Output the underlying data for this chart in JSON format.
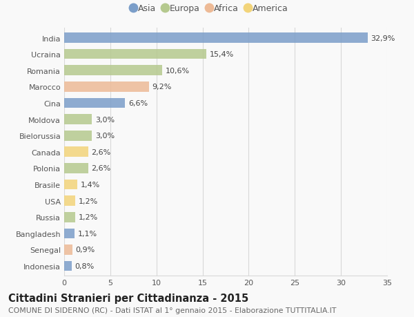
{
  "countries": [
    "India",
    "Ucraina",
    "Romania",
    "Marocco",
    "Cina",
    "Moldova",
    "Bielorussia",
    "Canada",
    "Polonia",
    "Brasile",
    "USA",
    "Russia",
    "Bangladesh",
    "Senegal",
    "Indonesia"
  ],
  "values": [
    32.9,
    15.4,
    10.6,
    9.2,
    6.6,
    3.0,
    3.0,
    2.6,
    2.6,
    1.4,
    1.2,
    1.2,
    1.1,
    0.9,
    0.8
  ],
  "labels": [
    "32,9%",
    "15,4%",
    "10,6%",
    "9,2%",
    "6,6%",
    "3,0%",
    "3,0%",
    "2,6%",
    "2,6%",
    "1,4%",
    "1,2%",
    "1,2%",
    "1,1%",
    "0,9%",
    "0,8%"
  ],
  "colors": [
    "#7b9ec9",
    "#b5c98e",
    "#b5c98e",
    "#edba96",
    "#7b9ec9",
    "#b5c98e",
    "#b5c98e",
    "#f2d47a",
    "#b5c98e",
    "#f2d47a",
    "#f2d47a",
    "#b5c98e",
    "#7b9ec9",
    "#edba96",
    "#7b9ec9"
  ],
  "legend_labels": [
    "Asia",
    "Europa",
    "Africa",
    "America"
  ],
  "legend_colors": [
    "#7b9ec9",
    "#b5c98e",
    "#edba96",
    "#f2d47a"
  ],
  "title": "Cittadini Stranieri per Cittadinanza - 2015",
  "subtitle": "COMUNE DI SIDERNO (RC) - Dati ISTAT al 1° gennaio 2015 - Elaborazione TUTTITALIA.IT",
  "xlim": [
    0,
    35
  ],
  "xticks": [
    0,
    5,
    10,
    15,
    20,
    25,
    30,
    35
  ],
  "bg_color": "#f9f9f9",
  "grid_color": "#d8d8d8",
  "bar_height": 0.62,
  "title_fontsize": 10.5,
  "subtitle_fontsize": 7.8,
  "label_fontsize": 8,
  "tick_fontsize": 8,
  "legend_fontsize": 9
}
